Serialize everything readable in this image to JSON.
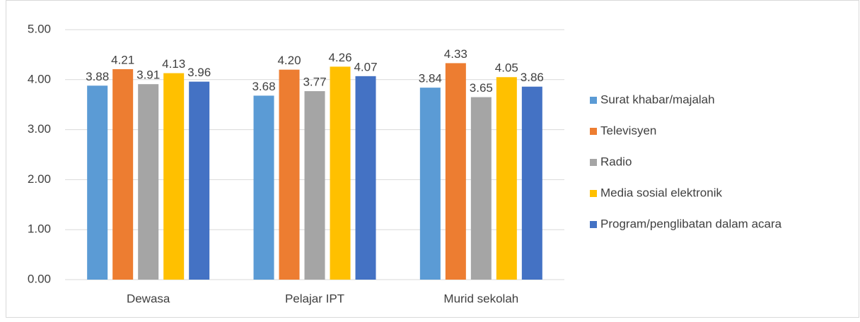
{
  "chart_data": {
    "type": "bar",
    "categories": [
      "Dewasa",
      "Pelajar IPT",
      "Murid sekolah"
    ],
    "series": [
      {
        "name": "Surat khabar/majalah",
        "color": "#5b9bd5",
        "values": [
          3.88,
          3.68,
          3.84
        ],
        "value_labels": [
          "3.88",
          "3.68",
          "3.84"
        ]
      },
      {
        "name": "Televisyen",
        "color": "#ed7d31",
        "values": [
          4.21,
          4.2,
          4.33
        ],
        "value_labels": [
          "4.21",
          "4.20",
          "4.33"
        ]
      },
      {
        "name": "Radio",
        "color": "#a5a5a5",
        "values": [
          3.91,
          3.77,
          3.65
        ],
        "value_labels": [
          "3.91",
          "3.77",
          "3.65"
        ]
      },
      {
        "name": "Media sosial elektronik",
        "color": "#ffc000",
        "values": [
          4.13,
          4.26,
          4.05
        ],
        "value_labels": [
          "4.13",
          "4.26",
          "4.05"
        ]
      },
      {
        "name": "Program/penglibatan dalam acara",
        "color": "#4472c4",
        "values": [
          3.96,
          4.07,
          3.86
        ],
        "value_labels": [
          "3.96",
          "4.07",
          "3.86"
        ]
      }
    ],
    "ylim": [
      0,
      5
    ],
    "yticks": [
      {
        "value": 0,
        "label": "0.00"
      },
      {
        "value": 1,
        "label": "1.00"
      },
      {
        "value": 2,
        "label": "2.00"
      },
      {
        "value": 3,
        "label": "3.00"
      },
      {
        "value": 4,
        "label": "4.00"
      },
      {
        "value": 5,
        "label": "5.00"
      }
    ],
    "grid": true,
    "legend": "right"
  }
}
